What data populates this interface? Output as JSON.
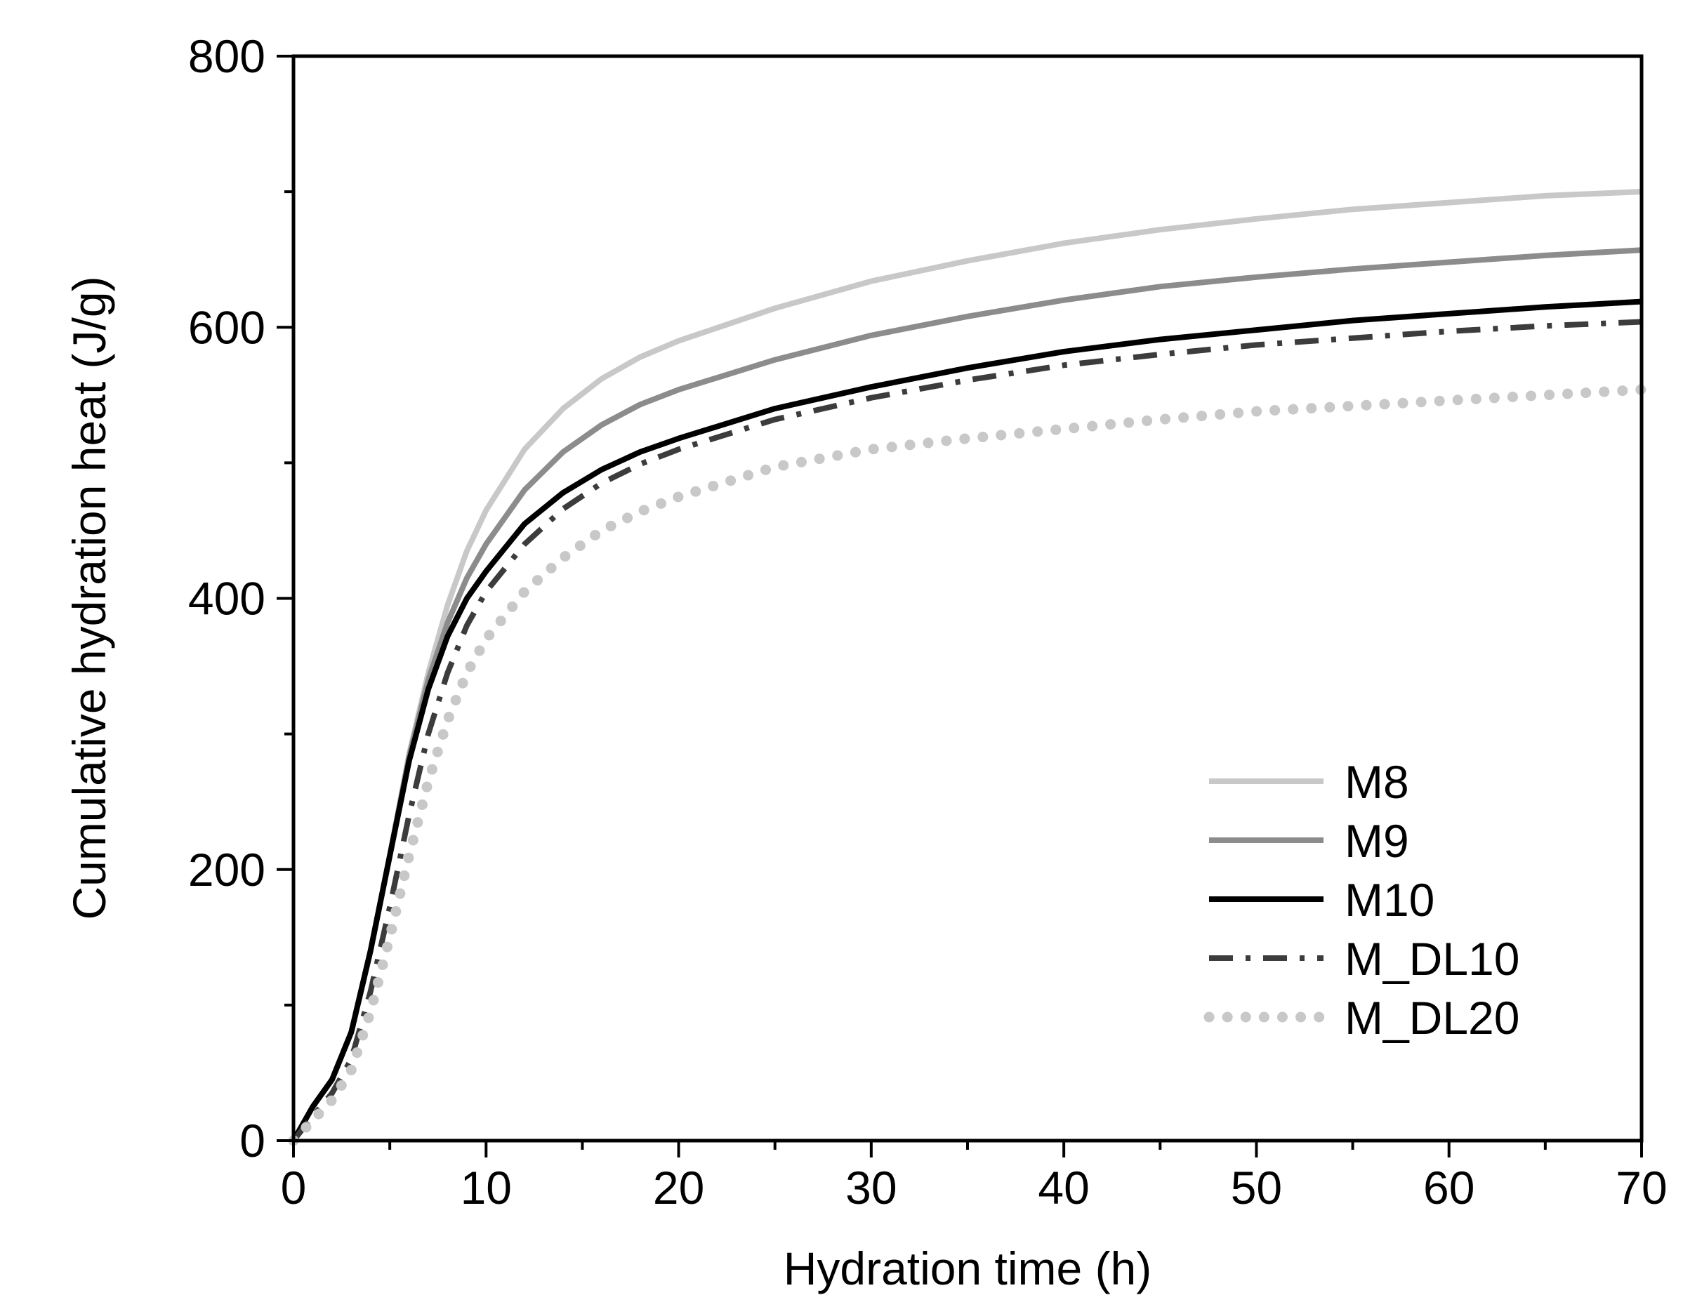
{
  "chart_data": {
    "type": "line",
    "title": "",
    "xlabel": "Hydration time (h)",
    "ylabel": "Cumulative hydration heat (J/g)",
    "xlim": [
      0,
      70
    ],
    "ylim": [
      0,
      800
    ],
    "xticks": [
      0,
      10,
      20,
      30,
      40,
      50,
      60,
      70
    ],
    "xtick_labels": [
      "0",
      "10",
      "20",
      "30",
      "40",
      "50",
      "60",
      "70"
    ],
    "yticks": [
      0,
      200,
      400,
      600,
      800
    ],
    "ytick_labels": [
      "0",
      "200",
      "400",
      "600",
      "800"
    ],
    "x_minor_step": 5,
    "y_minor_step": 100,
    "grid": false,
    "legend_position": "bottom-right",
    "series": [
      {
        "name": "M8",
        "color": "#c8c8c8",
        "style": "solid",
        "points": [
          [
            0,
            0
          ],
          [
            1,
            25
          ],
          [
            2,
            45
          ],
          [
            3,
            80
          ],
          [
            4,
            140
          ],
          [
            5,
            210
          ],
          [
            6,
            285
          ],
          [
            7,
            345
          ],
          [
            8,
            395
          ],
          [
            9,
            435
          ],
          [
            10,
            465
          ],
          [
            12,
            510
          ],
          [
            14,
            540
          ],
          [
            16,
            562
          ],
          [
            18,
            578
          ],
          [
            20,
            590
          ],
          [
            25,
            614
          ],
          [
            30,
            634
          ],
          [
            35,
            649
          ],
          [
            40,
            662
          ],
          [
            45,
            672
          ],
          [
            50,
            680
          ],
          [
            55,
            687
          ],
          [
            60,
            692
          ],
          [
            65,
            697
          ],
          [
            70,
            700
          ]
        ]
      },
      {
        "name": "M9",
        "color": "#8c8c8c",
        "style": "solid",
        "points": [
          [
            0,
            0
          ],
          [
            1,
            25
          ],
          [
            2,
            45
          ],
          [
            3,
            80
          ],
          [
            4,
            140
          ],
          [
            5,
            210
          ],
          [
            6,
            283
          ],
          [
            7,
            340
          ],
          [
            8,
            382
          ],
          [
            9,
            415
          ],
          [
            10,
            440
          ],
          [
            12,
            480
          ],
          [
            14,
            508
          ],
          [
            16,
            528
          ],
          [
            18,
            543
          ],
          [
            20,
            554
          ],
          [
            25,
            576
          ],
          [
            30,
            594
          ],
          [
            35,
            608
          ],
          [
            40,
            620
          ],
          [
            45,
            630
          ],
          [
            50,
            637
          ],
          [
            55,
            643
          ],
          [
            60,
            648
          ],
          [
            65,
            653
          ],
          [
            70,
            657
          ]
        ]
      },
      {
        "name": "M10",
        "color": "#000000",
        "style": "solid",
        "points": [
          [
            0,
            0
          ],
          [
            1,
            25
          ],
          [
            2,
            45
          ],
          [
            3,
            80
          ],
          [
            4,
            140
          ],
          [
            5,
            210
          ],
          [
            6,
            280
          ],
          [
            7,
            333
          ],
          [
            8,
            372
          ],
          [
            9,
            400
          ],
          [
            10,
            420
          ],
          [
            12,
            455
          ],
          [
            14,
            478
          ],
          [
            16,
            495
          ],
          [
            18,
            508
          ],
          [
            20,
            518
          ],
          [
            25,
            540
          ],
          [
            30,
            556
          ],
          [
            35,
            570
          ],
          [
            40,
            582
          ],
          [
            45,
            591
          ],
          [
            50,
            598
          ],
          [
            55,
            605
          ],
          [
            60,
            610
          ],
          [
            65,
            615
          ],
          [
            70,
            619
          ]
        ]
      },
      {
        "name": "M_DL10",
        "color": "#3c3c3c",
        "style": "dashdot",
        "points": [
          [
            0,
            0
          ],
          [
            1,
            18
          ],
          [
            2,
            35
          ],
          [
            3,
            60
          ],
          [
            4,
            110
          ],
          [
            5,
            172
          ],
          [
            6,
            240
          ],
          [
            7,
            300
          ],
          [
            8,
            345
          ],
          [
            9,
            380
          ],
          [
            10,
            405
          ],
          [
            12,
            440
          ],
          [
            14,
            466
          ],
          [
            16,
            485
          ],
          [
            18,
            499
          ],
          [
            20,
            510
          ],
          [
            25,
            532
          ],
          [
            30,
            548
          ],
          [
            35,
            561
          ],
          [
            40,
            572
          ],
          [
            45,
            580
          ],
          [
            50,
            587
          ],
          [
            55,
            592
          ],
          [
            60,
            597
          ],
          [
            65,
            601
          ],
          [
            70,
            604
          ]
        ]
      },
      {
        "name": "M_DL20",
        "color": "#c8c8c8",
        "style": "dotted",
        "points": [
          [
            0,
            0
          ],
          [
            1,
            15
          ],
          [
            2,
            30
          ],
          [
            3,
            52
          ],
          [
            4,
            95
          ],
          [
            5,
            150
          ],
          [
            6,
            210
          ],
          [
            7,
            265
          ],
          [
            8,
            310
          ],
          [
            9,
            345
          ],
          [
            10,
            370
          ],
          [
            12,
            405
          ],
          [
            14,
            430
          ],
          [
            16,
            450
          ],
          [
            18,
            464
          ],
          [
            20,
            475
          ],
          [
            25,
            497
          ],
          [
            30,
            510
          ],
          [
            35,
            518
          ],
          [
            40,
            525
          ],
          [
            45,
            532
          ],
          [
            50,
            538
          ],
          [
            55,
            542
          ],
          [
            60,
            546
          ],
          [
            65,
            550
          ],
          [
            70,
            554
          ]
        ]
      }
    ]
  }
}
